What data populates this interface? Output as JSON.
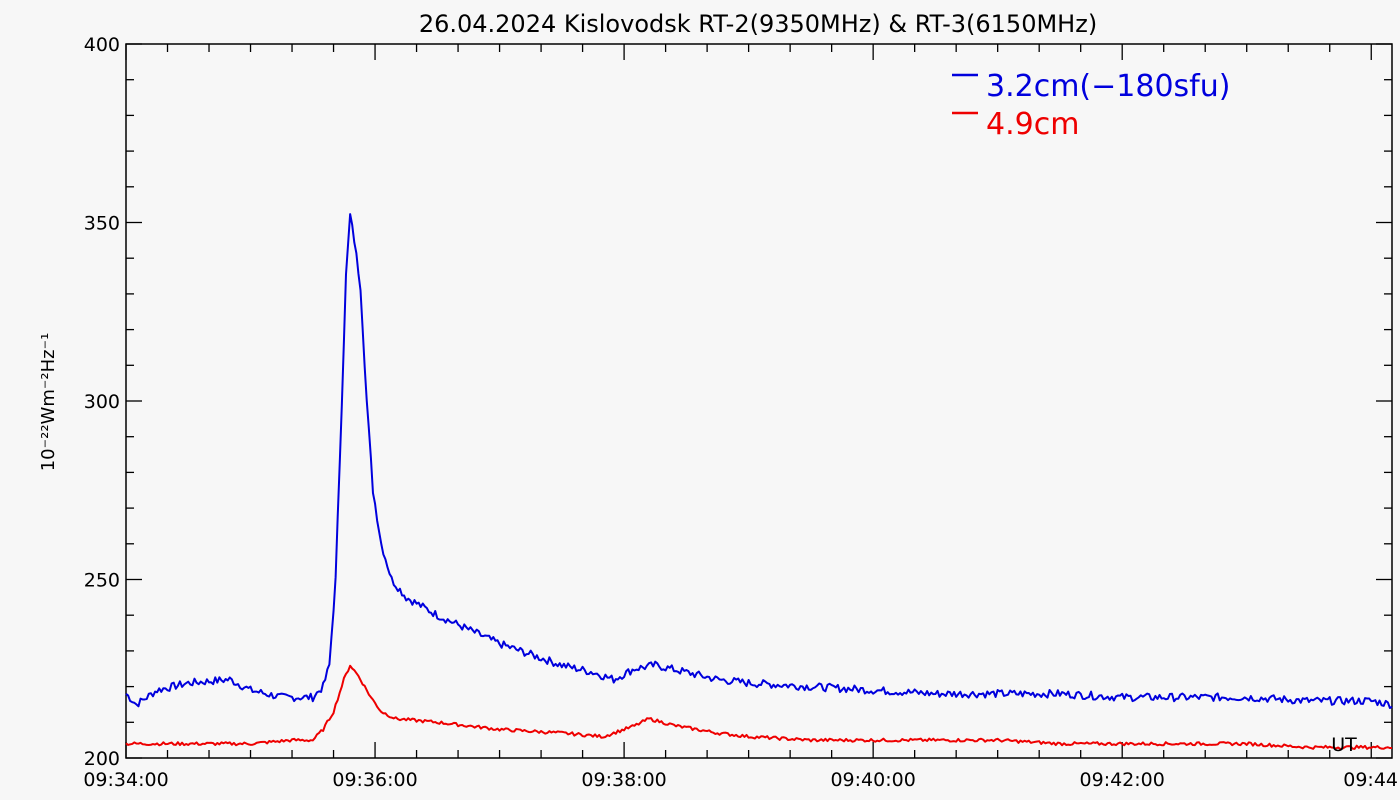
{
  "chart_data": {
    "type": "line",
    "title": "26.04.2024 Kislovodsk RT-2(9350MHz) & RT-3(6150MHz)",
    "ylabel": "10⁻²²Wm⁻²Hz⁻¹",
    "xlabel": "UT",
    "corner_label": "UT",
    "xlim": [
      "09:34:00",
      "09:44:10"
    ],
    "ylim": [
      200,
      400
    ],
    "x_ticks": [
      "09:34:00",
      "09:36:00",
      "09:38:00",
      "09:40:00",
      "09:42:00",
      "09:44"
    ],
    "y_ticks": [
      "200",
      "250",
      "300",
      "350",
      "400"
    ],
    "legend_position": "top-right",
    "series": [
      {
        "name": "3.2cm(−180sfu)",
        "color": "#0000dd",
        "points": [
          [
            "09:34:00",
            218
          ],
          [
            "09:34:05",
            215
          ],
          [
            "09:34:15",
            219
          ],
          [
            "09:34:30",
            221
          ],
          [
            "09:34:50",
            222
          ],
          [
            "09:35:00",
            219
          ],
          [
            "09:35:15",
            217
          ],
          [
            "09:35:30",
            217
          ],
          [
            "09:35:35",
            220
          ],
          [
            "09:35:38",
            226
          ],
          [
            "09:35:41",
            250
          ],
          [
            "09:35:44",
            300
          ],
          [
            "09:35:46",
            335
          ],
          [
            "09:35:48",
            352
          ],
          [
            "09:35:50",
            345
          ],
          [
            "09:35:53",
            332
          ],
          [
            "09:35:56",
            300
          ],
          [
            "09:35:59",
            275
          ],
          [
            "09:36:03",
            260
          ],
          [
            "09:36:08",
            250
          ],
          [
            "09:36:15",
            245
          ],
          [
            "09:36:30",
            240
          ],
          [
            "09:36:45",
            236
          ],
          [
            "09:37:00",
            232
          ],
          [
            "09:37:15",
            229
          ],
          [
            "09:37:30",
            226
          ],
          [
            "09:37:45",
            224
          ],
          [
            "09:37:55",
            222
          ],
          [
            "09:38:05",
            225
          ],
          [
            "09:38:15",
            226
          ],
          [
            "09:38:30",
            224
          ],
          [
            "09:38:45",
            222
          ],
          [
            "09:39:00",
            221
          ],
          [
            "09:39:30",
            220
          ],
          [
            "09:40:00",
            219
          ],
          [
            "09:40:30",
            218
          ],
          [
            "09:41:00",
            218
          ],
          [
            "09:41:30",
            218
          ],
          [
            "09:42:00",
            217
          ],
          [
            "09:42:30",
            217
          ],
          [
            "09:43:00",
            217
          ],
          [
            "09:43:30",
            216
          ],
          [
            "09:44:00",
            216
          ],
          [
            "09:44:10",
            215
          ]
        ]
      },
      {
        "name": "4.9cm",
        "color": "#ee0000",
        "points": [
          [
            "09:34:00",
            204
          ],
          [
            "09:34:30",
            204
          ],
          [
            "09:35:00",
            204
          ],
          [
            "09:35:20",
            205
          ],
          [
            "09:35:30",
            205
          ],
          [
            "09:35:35",
            208
          ],
          [
            "09:35:40",
            213
          ],
          [
            "09:35:45",
            222
          ],
          [
            "09:35:48",
            226
          ],
          [
            "09:35:52",
            223
          ],
          [
            "09:35:58",
            217
          ],
          [
            "09:36:03",
            213
          ],
          [
            "09:36:10",
            211
          ],
          [
            "09:36:30",
            210
          ],
          [
            "09:37:00",
            208
          ],
          [
            "09:37:30",
            207
          ],
          [
            "09:37:50",
            206
          ],
          [
            "09:38:05",
            209
          ],
          [
            "09:38:12",
            211
          ],
          [
            "09:38:25",
            209
          ],
          [
            "09:38:45",
            207
          ],
          [
            "09:39:00",
            206
          ],
          [
            "09:39:30",
            205
          ],
          [
            "09:40:00",
            205
          ],
          [
            "09:40:30",
            205
          ],
          [
            "09:41:00",
            205
          ],
          [
            "09:41:30",
            204
          ],
          [
            "09:42:00",
            204
          ],
          [
            "09:42:30",
            204
          ],
          [
            "09:43:00",
            204
          ],
          [
            "09:43:30",
            203
          ],
          [
            "09:44:00",
            203
          ],
          [
            "09:44:10",
            203
          ]
        ]
      }
    ]
  }
}
